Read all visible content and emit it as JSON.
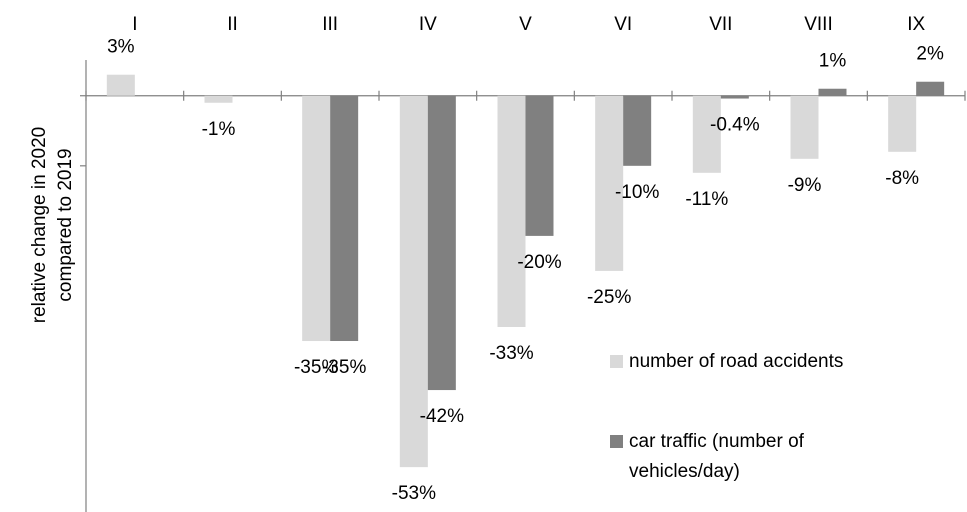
{
  "chart_data": {
    "type": "bar",
    "y_label": [
      "relative change in 2020",
      "compared to 2019"
    ],
    "categories": [
      "I",
      "II",
      "III",
      "IV",
      "V",
      "VI",
      "VII",
      "VIII",
      "IX"
    ],
    "series": [
      {
        "name": "number of road accidents",
        "color": "#d9d9d9",
        "values": [
          3,
          -1,
          -35,
          -53,
          -33,
          -25,
          -11,
          -9,
          -8
        ],
        "value_labels": [
          "3%",
          "-1%",
          "-35%",
          "-53%",
          "-33%",
          "-25%",
          "-11%",
          "-9%",
          "-8%"
        ]
      },
      {
        "name": [
          "car traffic (number of",
          "vehicles/day)"
        ],
        "color": "#808080",
        "values": [
          null,
          null,
          -35,
          -42,
          -20,
          -10,
          -0.4,
          1,
          2
        ],
        "value_labels": [
          null,
          null,
          "-35%",
          "-42%",
          "-20%",
          "-10%",
          "-0.4%",
          "1%",
          "2%"
        ]
      }
    ],
    "ylim": [
      -59.4,
      5.1
    ],
    "yticks": [
      -10,
      0
    ],
    "legend": "bottom-right"
  }
}
